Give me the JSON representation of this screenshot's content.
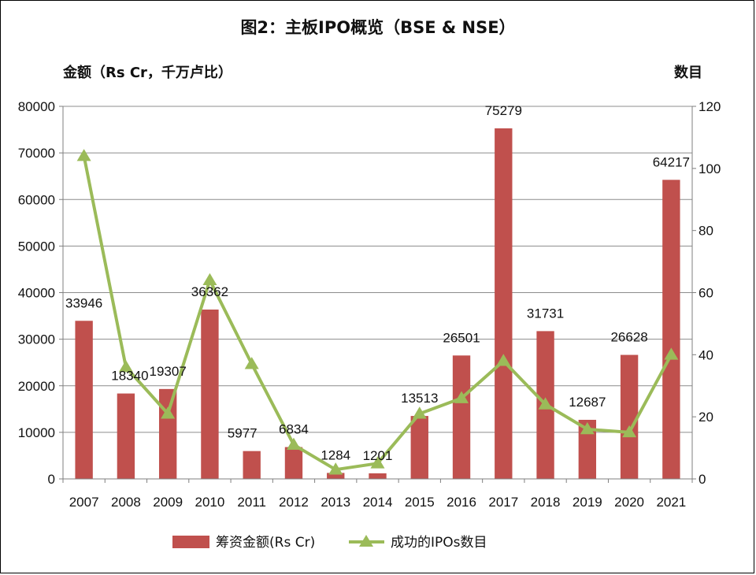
{
  "chart_data": {
    "type": "bar",
    "title": "图2：主板IPO概览（BSE & NSE）",
    "ylabel": "金额（Rs Cr，千万卢比）",
    "y2label": "数目",
    "categories": [
      "2007",
      "2008",
      "2009",
      "2010",
      "2011",
      "2012",
      "2013",
      "2014",
      "2015",
      "2016",
      "2017",
      "2018",
      "2019",
      "2020",
      "2021"
    ],
    "ylim": [
      0,
      80000
    ],
    "y2lim": [
      0,
      120
    ],
    "yticks": [
      0,
      10000,
      20000,
      30000,
      40000,
      50000,
      60000,
      70000,
      80000
    ],
    "y2ticks": [
      0,
      20,
      40,
      60,
      80,
      100,
      120
    ],
    "grid": true,
    "legend_position": "bottom",
    "series": [
      {
        "name": "筹资金额(Rs Cr)",
        "type": "bar",
        "axis": "left",
        "color": "#c0504d",
        "values": [
          33946,
          18340,
          19307,
          36362,
          5977,
          6834,
          1284,
          1201,
          13513,
          26501,
          75279,
          31731,
          12687,
          26628,
          64217
        ],
        "data_labels": [
          "33946",
          "18340",
          "19307",
          "36362",
          "5977",
          "6834",
          "1284",
          "1201",
          "13513",
          "26501",
          "75279",
          "31731",
          "12687",
          "26628",
          "64217"
        ]
      },
      {
        "name": "成功的IPOs数目",
        "type": "line",
        "axis": "right",
        "color": "#9bbb59",
        "marker": "triangle",
        "values": [
          104,
          36,
          21,
          64,
          37,
          11,
          3,
          5,
          21,
          26,
          38,
          24,
          16,
          15,
          40
        ]
      }
    ]
  }
}
